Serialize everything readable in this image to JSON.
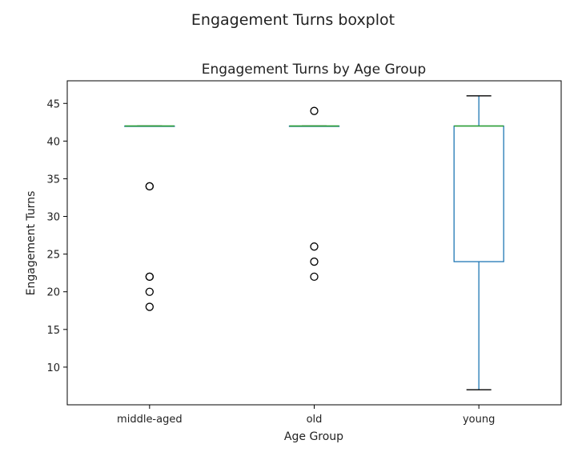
{
  "figure_title": "Engagement Turns boxplot",
  "chart_data": {
    "type": "boxplot",
    "title": "Engagement Turns by Age Group",
    "xlabel": "Age Group",
    "ylabel": "Engagement Turns",
    "ylim": [
      5,
      48
    ],
    "yticks": [
      10,
      15,
      20,
      25,
      30,
      35,
      40,
      45
    ],
    "categories": [
      "middle-aged",
      "old",
      "young"
    ],
    "boxes": [
      {
        "category": "middle-aged",
        "whislo": 42,
        "q1": 42,
        "med": 42,
        "q3": 42,
        "whishi": 42,
        "fliers": [
          34,
          34,
          22,
          22,
          20,
          18
        ]
      },
      {
        "category": "old",
        "whislo": 42,
        "q1": 42,
        "med": 42,
        "q3": 42,
        "whishi": 42,
        "fliers": [
          44,
          26,
          24,
          22
        ]
      },
      {
        "category": "young",
        "whislo": 7,
        "q1": 24,
        "med": 42,
        "q3": 42,
        "whishi": 46,
        "fliers": []
      }
    ],
    "grid": false,
    "colors": {
      "box": "#1f77b4",
      "median": "#2ca02c",
      "whisker": "#1f77b4",
      "cap": "#000000",
      "flier": "#000000"
    }
  }
}
